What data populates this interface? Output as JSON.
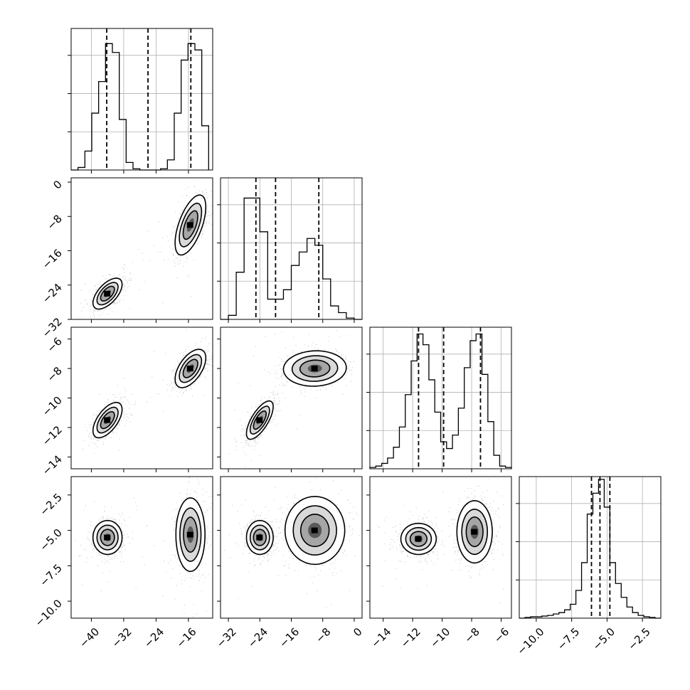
{
  "chart_data": {
    "type": "corner",
    "grid": true,
    "diagonal": [
      {
        "type": "histogram",
        "xlim": [
          -45,
          -10
        ],
        "ylim": [
          0,
          1.12
        ],
        "quantiles": [
          -36.2,
          -26.0,
          -15.4
        ],
        "bin_edges": [
          -45,
          -43.3,
          -41.6,
          -39.9,
          -38.2,
          -36.5,
          -34.8,
          -33.1,
          -31.4,
          -29.7,
          -28.0,
          -26.3,
          -24.6,
          -22.9,
          -21.2,
          -19.5,
          -17.8,
          -16.1,
          -14.4,
          -12.7,
          -11.0
        ],
        "counts": [
          0,
          0.02,
          0.15,
          0.45,
          0.7,
          1.0,
          0.93,
          0.4,
          0.06,
          0.01,
          0,
          0,
          0,
          0.01,
          0.08,
          0.45,
          0.87,
          1.0,
          0.95,
          0.35
        ]
      },
      {
        "type": "histogram",
        "xlim": [
          -34,
          2
        ],
        "ylim": [
          0,
          1.05
        ],
        "quantiles": [
          -25.0,
          -20.0,
          -9.0
        ],
        "bin_edges": [
          -34,
          -32,
          -30,
          -28,
          -26,
          -24,
          -22,
          -20,
          -18,
          -16,
          -14,
          -12,
          -10,
          -8,
          -6,
          -4,
          -2,
          0,
          2
        ],
        "counts": [
          0,
          0.03,
          0.35,
          0.9,
          0.9,
          0.65,
          0.15,
          0.15,
          0.22,
          0.4,
          0.5,
          0.6,
          0.55,
          0.3,
          0.1,
          0.05,
          0.01,
          0
        ]
      },
      {
        "type": "histogram",
        "xlim": [
          -14.9,
          -5.3
        ],
        "ylim": [
          0,
          1.05
        ],
        "quantiles": [
          -11.6,
          -9.9,
          -7.4
        ],
        "bin_edges": [
          -14.9,
          -14.5,
          -14.1,
          -13.7,
          -13.3,
          -12.9,
          -12.5,
          -12.1,
          -11.7,
          -11.3,
          -10.9,
          -10.5,
          -10.1,
          -9.7,
          -9.3,
          -8.9,
          -8.5,
          -8.1,
          -7.7,
          -7.3,
          -6.9,
          -6.5,
          -6.1,
          -5.7,
          -5.3
        ],
        "counts": [
          0.01,
          0.02,
          0.04,
          0.08,
          0.16,
          0.31,
          0.55,
          0.8,
          1.0,
          0.92,
          0.66,
          0.42,
          0.2,
          0.15,
          0.25,
          0.45,
          0.75,
          0.95,
          1.0,
          0.7,
          0.35,
          0.1,
          0.02,
          0.01
        ]
      },
      {
        "type": "histogram",
        "xlim": [
          -11.2,
          -1.2
        ],
        "ylim": [
          0,
          1.02
        ],
        "quantiles": [
          -6.1,
          -5.5,
          -4.8
        ],
        "bin_edges": [
          -11.2,
          -10.8,
          -10.4,
          -10.0,
          -9.6,
          -9.2,
          -8.8,
          -8.4,
          -8.0,
          -7.6,
          -7.2,
          -6.8,
          -6.4,
          -6.0,
          -5.6,
          -5.2,
          -4.8,
          -4.4,
          -4.0,
          -3.6,
          -3.2,
          -2.8,
          -2.4,
          -2.0,
          -1.6,
          -1.2
        ],
        "counts": [
          0,
          0.005,
          0.01,
          0.01,
          0.015,
          0.02,
          0.03,
          0.04,
          0.06,
          0.1,
          0.2,
          0.4,
          0.75,
          0.9,
          1.0,
          0.8,
          0.4,
          0.25,
          0.15,
          0.08,
          0.04,
          0.02,
          0.01,
          0.005,
          0
        ]
      }
    ],
    "pairs": [
      {
        "row": 1,
        "col": 0,
        "xlim": [
          -45,
          -10
        ],
        "ylim": [
          -32,
          1
        ],
        "clusters": [
          {
            "cx": -36,
            "cy": -26,
            "sx": 1.8,
            "sy": 1.8,
            "rho": 0.6,
            "w": 1.0
          },
          {
            "cx": -15.5,
            "cy": -10,
            "sx": 1.9,
            "sy": 3.5,
            "rho": 0.6,
            "w": 0.9
          }
        ]
      },
      {
        "row": 2,
        "col": 0,
        "xlim": [
          -45,
          -10
        ],
        "ylim": [
          -14.8,
          -5.2
        ],
        "clusters": [
          {
            "cx": -36,
            "cy": -11.5,
            "sx": 1.8,
            "sy": 0.6,
            "rho": 0.6,
            "w": 1.0
          },
          {
            "cx": -15.5,
            "cy": -8.0,
            "sx": 1.9,
            "sy": 0.65,
            "rho": 0.55,
            "w": 0.95
          }
        ]
      },
      {
        "row": 2,
        "col": 1,
        "xlim": [
          -34,
          2
        ],
        "ylim": [
          -14.8,
          -5.2
        ],
        "clusters": [
          {
            "cx": -24,
            "cy": -11.5,
            "sx": 1.7,
            "sy": 0.65,
            "rho": 0.7,
            "w": 1.0
          },
          {
            "cx": -10,
            "cy": -8.0,
            "sx": 4.0,
            "sy": 0.6,
            "rho": 0.05,
            "w": 0.9
          }
        ]
      },
      {
        "row": 3,
        "col": 0,
        "xlim": [
          -45,
          -10
        ],
        "ylim": [
          -11.2,
          -1.2
        ],
        "clusters": [
          {
            "cx": -36,
            "cy": -5.5,
            "sx": 1.8,
            "sy": 0.6,
            "rho": 0.0,
            "w": 1.0
          },
          {
            "cx": -15.5,
            "cy": -5.3,
            "sx": 1.8,
            "sy": 1.3,
            "rho": 0.0,
            "w": 0.95
          }
        ]
      },
      {
        "row": 3,
        "col": 1,
        "xlim": [
          -34,
          2
        ],
        "ylim": [
          -11.2,
          -1.2
        ],
        "clusters": [
          {
            "cx": -24,
            "cy": -5.5,
            "sx": 1.7,
            "sy": 0.6,
            "rho": 0.0,
            "w": 1.0
          },
          {
            "cx": -10,
            "cy": -5.0,
            "sx": 3.8,
            "sy": 1.2,
            "rho": 0.0,
            "w": 0.9
          }
        ]
      },
      {
        "row": 3,
        "col": 2,
        "xlim": [
          -14.9,
          -5.3
        ],
        "ylim": [
          -11.2,
          -1.2
        ],
        "clusters": [
          {
            "cx": -11.6,
            "cy": -5.6,
            "sx": 0.6,
            "sy": 0.55,
            "rho": 0.0,
            "w": 1.0
          },
          {
            "cx": -7.8,
            "cy": -5.1,
            "sx": 0.6,
            "sy": 1.1,
            "rho": 0.0,
            "w": 0.95
          }
        ]
      }
    ],
    "x_tick_labels": [
      [
        "−40",
        "−32",
        "−24",
        "−16"
      ],
      [
        "−32",
        "−24",
        "−16",
        "−8",
        "0"
      ],
      [
        "−14",
        "−12",
        "−10",
        "−8",
        "−6"
      ],
      [
        "−10.0",
        "−7.5",
        "−5.0",
        "−2.5"
      ]
    ],
    "x_tick_values": [
      [
        -40,
        -32,
        -24,
        -16
      ],
      [
        -32,
        -24,
        -16,
        -8,
        0
      ],
      [
        -14,
        -12,
        -10,
        -8,
        -6
      ],
      [
        -10.0,
        -7.5,
        -5.0,
        -2.5
      ]
    ],
    "y_tick_labels": [
      [
        "0",
        "−8",
        "−16",
        "−24",
        "−32"
      ],
      [
        "−6",
        "−8",
        "−10",
        "−12",
        "−14"
      ],
      [
        "−2.5",
        "−5.0",
        "−7.5",
        "−10.0"
      ]
    ],
    "y_tick_values": [
      [
        0,
        -8,
        -16,
        -24,
        -32
      ],
      [
        -6,
        -8,
        -10,
        -12,
        -14
      ],
      [
        -2.5,
        -5.0,
        -7.5,
        -10.0
      ]
    ]
  }
}
